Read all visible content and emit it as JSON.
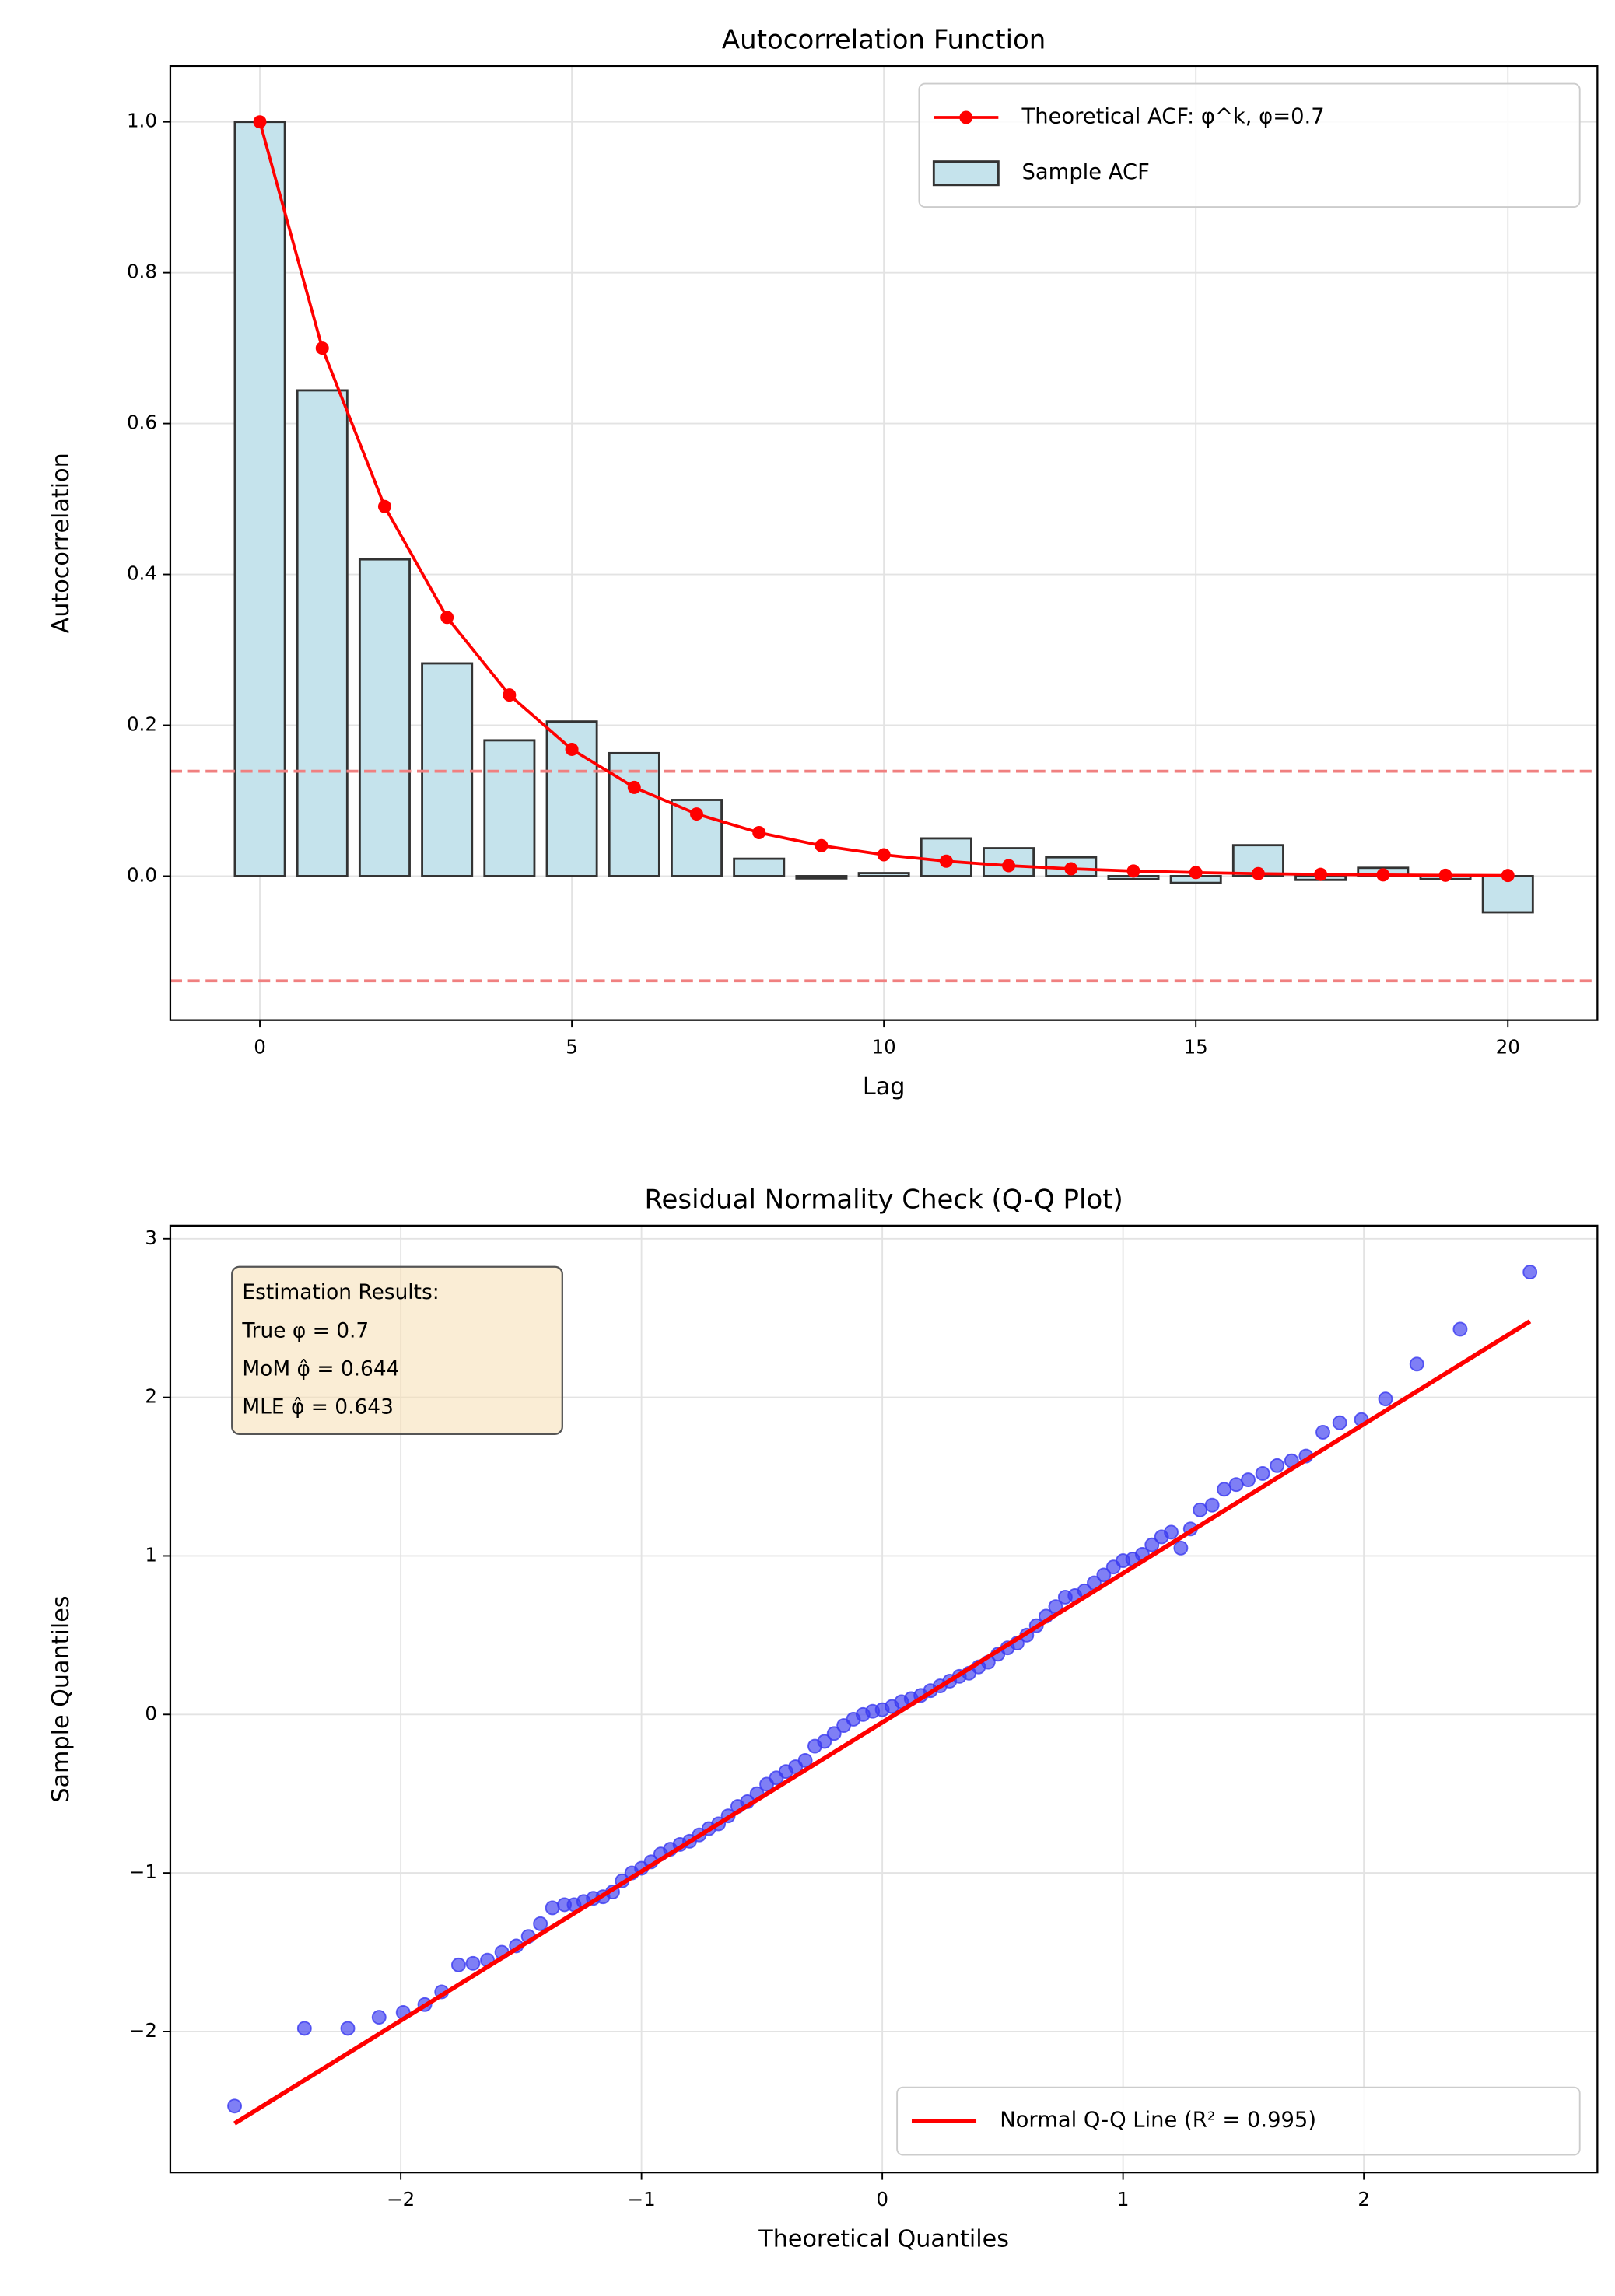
{
  "chart_data": [
    {
      "type": "bar",
      "title": "Autocorrelation Function",
      "xlabel": "Lag",
      "ylabel": "Autocorrelation",
      "x": [
        0,
        1,
        2,
        3,
        4,
        5,
        6,
        7,
        8,
        9,
        10,
        11,
        12,
        13,
        14,
        15,
        16,
        17,
        18,
        19,
        20
      ],
      "series": [
        {
          "name": "Sample ACF",
          "type": "bar",
          "color": "#c5e3ec",
          "edgecolor": "#333333",
          "values": [
            1.0,
            0.644,
            0.42,
            0.282,
            0.18,
            0.205,
            0.163,
            0.101,
            0.023,
            -0.003,
            0.004,
            0.05,
            0.037,
            0.025,
            -0.004,
            -0.009,
            0.041,
            -0.005,
            0.011,
            -0.004,
            -0.048
          ]
        },
        {
          "name": "Theoretical ACF: φ^k, φ=0.7",
          "type": "line",
          "color": "#ff0000",
          "values": [
            1,
            0.7,
            0.49,
            0.343,
            0.2401,
            0.16807,
            0.117649,
            0.0823543,
            0.057648,
            0.0403536,
            0.0282475,
            0.0197733,
            0.0138413,
            0.0096889,
            0.00678223,
            0.00474756,
            0.00332329,
            0.0023263,
            0.00162841,
            0.00113989,
            0.000797923
          ]
        }
      ],
      "hlines": [
        0.139,
        -0.139
      ],
      "hline_color": "#f08080",
      "xlim": [
        -1.435,
        21.435
      ],
      "ylim": [
        -0.191,
        1.074
      ],
      "xticks": [
        0,
        5,
        10,
        15,
        20
      ],
      "yticks": [
        {
          "value": 0,
          "label": "0.0"
        },
        {
          "value": 0.2,
          "label": "0.2"
        },
        {
          "value": 0.4,
          "label": "0.4"
        },
        {
          "value": 0.6,
          "label": "0.6"
        },
        {
          "value": 0.8,
          "label": "0.8"
        },
        {
          "value": 1,
          "label": "1.0"
        }
      ],
      "grid": true,
      "legend": "upper right"
    },
    {
      "type": "scatter",
      "title": "Residual Normality Check (Q-Q Plot)",
      "xlabel": "Theoretical Quantiles",
      "ylabel": "Sample Quantiles",
      "color": "#3a3af0",
      "x": [
        -2.69,
        -2.4,
        -2.22,
        -2.09,
        -1.99,
        -1.9,
        -1.83,
        -1.76,
        -1.7,
        -1.64,
        -1.58,
        -1.52,
        -1.47,
        -1.42,
        -1.37,
        -1.32,
        -1.28,
        -1.24,
        -1.2,
        -1.16,
        -1.12,
        -1.08,
        -1.04,
        -1.0,
        -0.96,
        -0.92,
        -0.88,
        -0.84,
        -0.8,
        -0.76,
        -0.72,
        -0.68,
        -0.64,
        -0.6,
        -0.56,
        -0.52,
        -0.48,
        -0.44,
        -0.4,
        -0.36,
        -0.32,
        -0.28,
        -0.24,
        -0.2,
        -0.16,
        -0.12,
        -0.08,
        -0.04,
        0,
        0.04,
        0.08,
        0.12,
        0.16,
        0.2,
        0.24,
        0.28,
        0.32,
        0.36,
        0.4,
        0.44,
        0.48,
        0.52,
        0.56,
        0.6,
        0.64,
        0.68,
        0.72,
        0.76,
        0.8,
        0.84,
        0.88,
        0.92,
        0.96,
        1.0,
        1.04,
        1.08,
        1.12,
        1.16,
        1.2,
        1.24,
        1.28,
        1.32,
        1.37,
        1.42,
        1.47,
        1.52,
        1.58,
        1.64,
        1.7,
        1.76,
        1.83,
        1.9,
        1.99,
        2.09,
        2.22,
        2.4,
        2.69
      ],
      "values": [
        -2.47,
        -1.98,
        -1.98,
        -1.91,
        -1.88,
        -1.83,
        -1.75,
        -1.58,
        -1.57,
        -1.55,
        -1.5,
        -1.46,
        -1.4,
        -1.32,
        -1.22,
        -1.2,
        -1.2,
        -1.18,
        -1.16,
        -1.15,
        -1.12,
        -1.05,
        -1.0,
        -0.97,
        -0.93,
        -0.88,
        -0.85,
        -0.82,
        -0.8,
        -0.76,
        -0.72,
        -0.69,
        -0.64,
        -0.58,
        -0.55,
        -0.5,
        -0.44,
        -0.4,
        -0.36,
        -0.33,
        -0.29,
        -0.2,
        -0.17,
        -0.12,
        -0.07,
        -0.03,
        0.0,
        0.02,
        0.03,
        0.05,
        0.08,
        0.1,
        0.12,
        0.15,
        0.18,
        0.21,
        0.24,
        0.26,
        0.3,
        0.33,
        0.38,
        0.42,
        0.45,
        0.5,
        0.56,
        0.62,
        0.68,
        0.74,
        0.75,
        0.78,
        0.83,
        0.88,
        0.93,
        0.97,
        0.98,
        1.01,
        1.07,
        1.12,
        1.15,
        1.05,
        1.17,
        1.29,
        1.32,
        1.42,
        1.45,
        1.48,
        1.52,
        1.57,
        1.6,
        1.63,
        1.78,
        1.84,
        1.86,
        1.99,
        2.21,
        2.43,
        2.79
      ],
      "line": {
        "name": "Normal Q-Q Line (R² = 0.995)",
        "color": "#ff0000",
        "x": [
          -2.69,
          2.69
        ],
        "values": [
          -2.58,
          2.48
        ]
      },
      "annotation": [
        "Estimation Results:",
        "True φ = 0.7",
        "MoM φ̂ = 0.644",
        "MLE φ̂ = 0.643"
      ],
      "xlim": [
        -2.957,
        2.97
      ],
      "ylim": [
        -2.889,
        3.083
      ],
      "xticks": [
        {
          "value": -2,
          "label": "−2"
        },
        {
          "value": -1,
          "label": "−1"
        },
        0,
        1,
        2
      ],
      "yticks": [
        {
          "value": -2,
          "label": "−2"
        },
        {
          "value": -1,
          "label": "−1"
        },
        0,
        1,
        2,
        3
      ],
      "grid": true,
      "legend": "lower right"
    }
  ]
}
